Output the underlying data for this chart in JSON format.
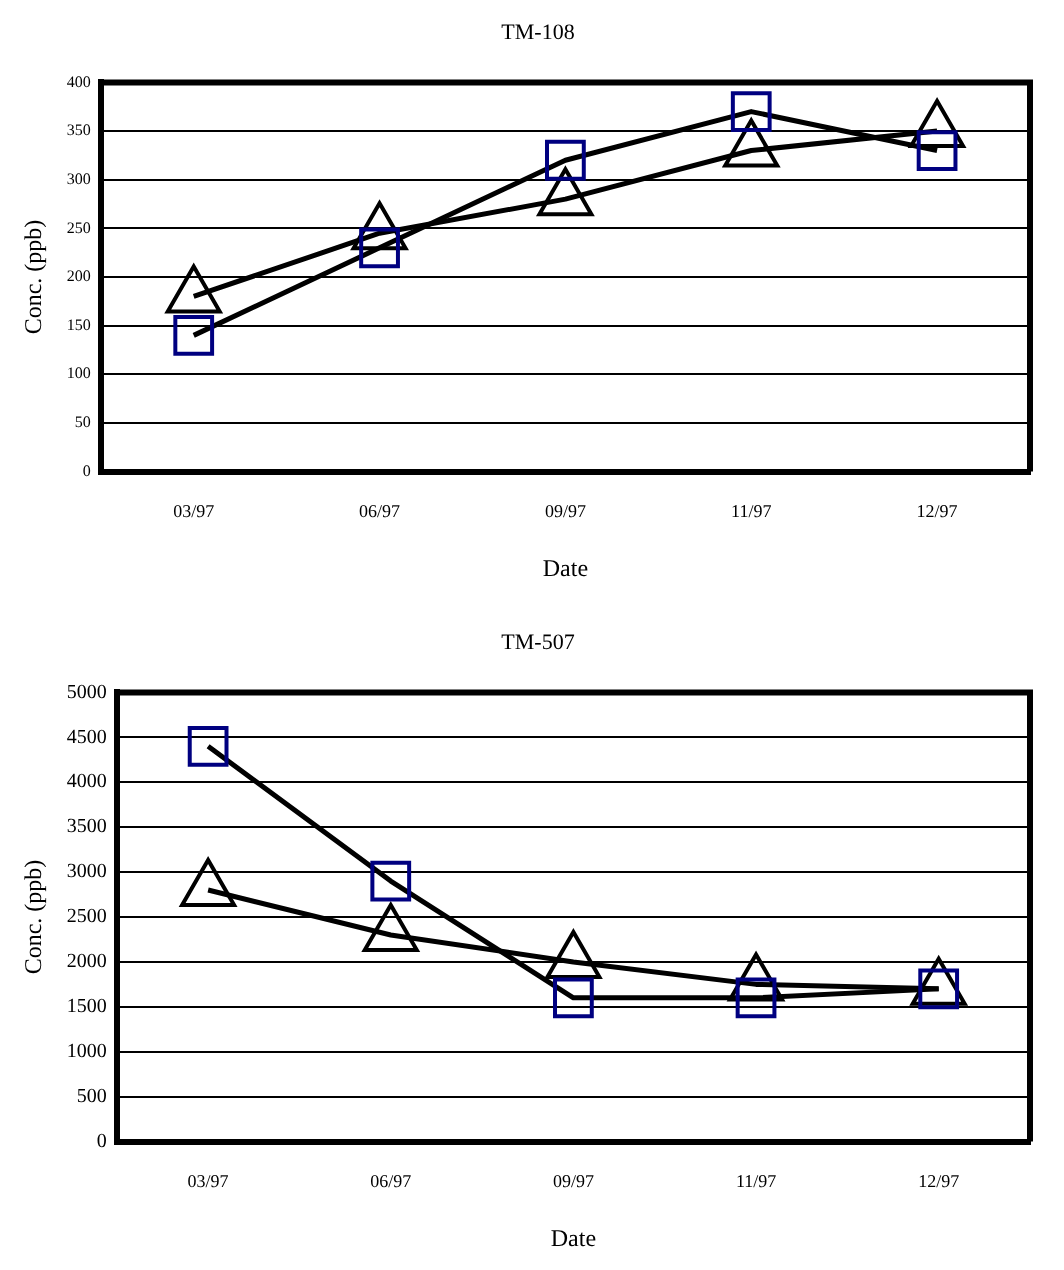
{
  "chart_data": [
    {
      "type": "line",
      "title": "TM-108",
      "xlabel": "Date",
      "ylabel": "Conc. (ppb)",
      "categories": [
        "03/97",
        "06/97",
        "09/97",
        "11/97",
        "12/97"
      ],
      "series": [
        {
          "color": "#000080",
          "marker": "square",
          "values": [
            140,
            230,
            320,
            370,
            330
          ]
        },
        {
          "color": "#000000",
          "marker": "triangle",
          "values": [
            180,
            245,
            280,
            330,
            350
          ]
        }
      ],
      "ylim": [
        0,
        400
      ],
      "yticks": [
        0,
        50,
        100,
        150,
        200,
        250,
        300,
        350,
        400
      ],
      "grid": "y",
      "line_style": "solid"
    },
    {
      "type": "line",
      "title": "TM-507",
      "xlabel": "Date",
      "ylabel": "Conc. (ppb)",
      "categories": [
        "03/97",
        "06/97",
        "09/97",
        "11/97",
        "12/97"
      ],
      "series": [
        {
          "color": "#000080",
          "marker": "square",
          "values": [
            4400,
            2900,
            1600,
            1600,
            1700
          ]
        },
        {
          "color": "#000000",
          "marker": "triangle",
          "values": [
            2800,
            2300,
            2000,
            1750,
            1700
          ]
        }
      ],
      "ylim": [
        0,
        5000
      ],
      "yticks": [
        0,
        500,
        1000,
        1500,
        2000,
        2500,
        3000,
        3500,
        4000,
        4500,
        5000
      ],
      "grid": "y",
      "line_style": "solid"
    }
  ]
}
